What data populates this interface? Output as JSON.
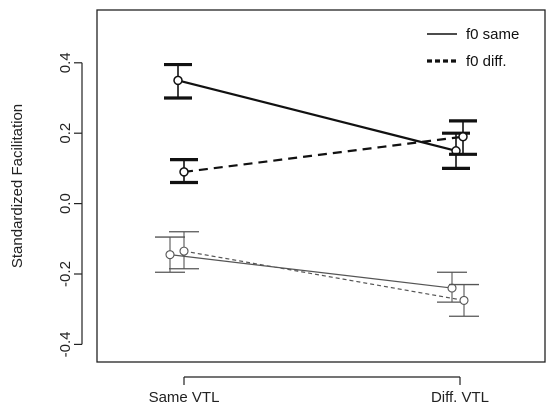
{
  "chart_data": {
    "type": "line",
    "title": "",
    "xlabel": "",
    "ylabel": "Standardized Facilitation",
    "categories": [
      "Same VTL",
      "Diff. VTL"
    ],
    "ylim": [
      -0.45,
      0.55
    ],
    "yticks": [
      -0.4,
      -0.2,
      0.0,
      0.2,
      0.4
    ],
    "ytick_labels": [
      "-0.4",
      "-0.2",
      "0.0",
      "0.2",
      "0.4"
    ],
    "grid": false,
    "legend": {
      "placement": "top-right",
      "entries": [
        {
          "label": "f0 same",
          "linestyle": "solid"
        },
        {
          "label": "f0 diff.",
          "linestyle": "dotted"
        }
      ]
    },
    "series": [
      {
        "group": "bold",
        "linestyle": "solid",
        "color": "#111111",
        "values": [
          0.35,
          0.15
        ],
        "err_low": [
          0.3,
          0.1
        ],
        "err_high": [
          0.395,
          0.2
        ]
      },
      {
        "group": "bold",
        "linestyle": "dashed",
        "color": "#111111",
        "values": [
          0.09,
          0.19
        ],
        "err_low": [
          0.06,
          0.14
        ],
        "err_high": [
          0.125,
          0.235
        ]
      },
      {
        "group": "light",
        "linestyle": "solid",
        "color": "#555555",
        "values": [
          -0.145,
          -0.24
        ],
        "err_low": [
          -0.195,
          -0.28
        ],
        "err_high": [
          -0.095,
          -0.195
        ]
      },
      {
        "group": "light",
        "linestyle": "dashed",
        "color": "#555555",
        "values": [
          -0.135,
          -0.275
        ],
        "err_low": [
          -0.185,
          -0.32
        ],
        "err_high": [
          -0.08,
          -0.23
        ]
      }
    ]
  }
}
